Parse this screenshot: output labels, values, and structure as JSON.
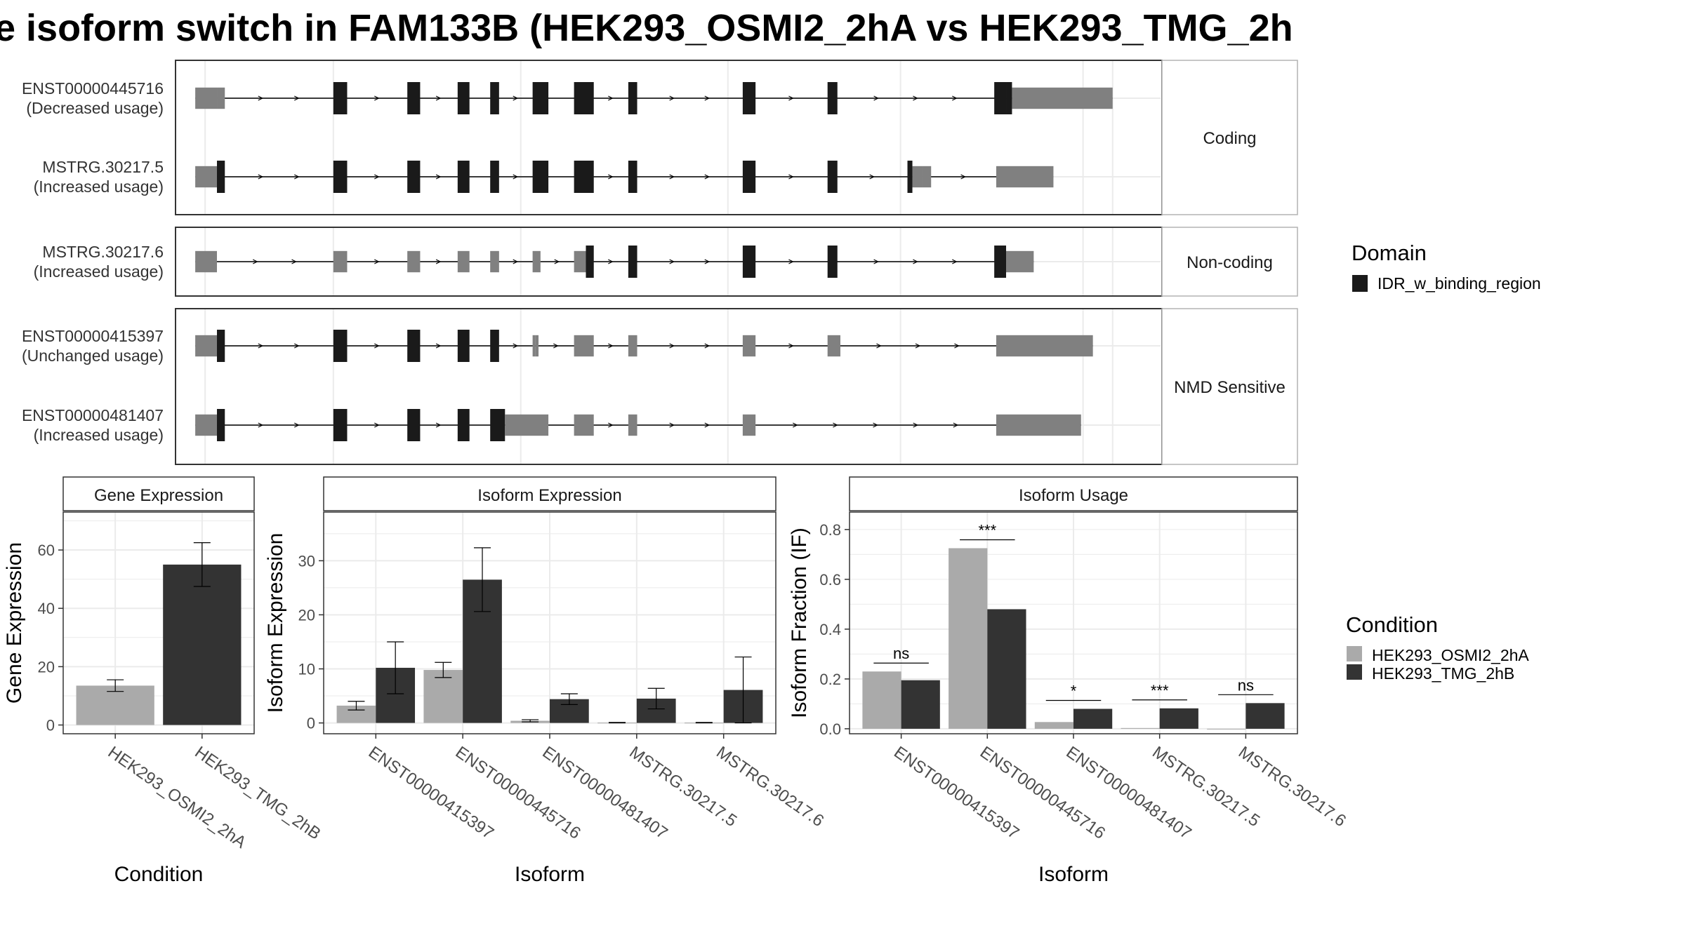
{
  "title": "e isoform switch in FAM133B (HEK293_OSMI2_2hA vs HEK293_TMG_2h",
  "colors": {
    "exon_noncoding": "#808080",
    "exon_domain": "#1a1a1a",
    "condition_a": "#aaaaaa",
    "condition_b": "#333333",
    "grid": "#ebebeb",
    "panel_border": "#333333",
    "strip_border": "#b3b3b3"
  },
  "structure": {
    "groups": [
      {
        "label": "Coding",
        "transcripts": [
          {
            "id": "ENST00000445716",
            "usage": "(Decreased usage)",
            "exons": [
              [
                0.02,
                0.042
              ],
              [
                0.042,
                0.05
              ],
              [
                0.16,
                0.174
              ],
              [
                0.235,
                0.248
              ],
              [
                0.286,
                0.298
              ],
              [
                0.319,
                0.328
              ],
              [
                0.362,
                0.378
              ],
              [
                0.404,
                0.424
              ],
              [
                0.459,
                0.468
              ],
              [
                0.575,
                0.588
              ],
              [
                0.661,
                0.671
              ],
              [
                0.83,
                0.842
              ],
              [
                0.842,
                0.848
              ],
              [
                0.848,
                0.95
              ]
            ],
            "domain": [
              0,
              0,
              1,
              1,
              1,
              1,
              1,
              1,
              1,
              1,
              1,
              1,
              1,
              0
            ]
          },
          {
            "id": "MSTRG.30217.5",
            "usage": "(Increased usage)",
            "exons": [
              [
                0.02,
                0.042
              ],
              [
                0.042,
                0.05
              ],
              [
                0.16,
                0.174
              ],
              [
                0.235,
                0.248
              ],
              [
                0.286,
                0.298
              ],
              [
                0.319,
                0.328
              ],
              [
                0.362,
                0.378
              ],
              [
                0.404,
                0.424
              ],
              [
                0.459,
                0.468
              ],
              [
                0.575,
                0.588
              ],
              [
                0.661,
                0.671
              ],
              [
                0.742,
                0.747
              ],
              [
                0.747,
                0.758
              ],
              [
                0.758,
                0.766
              ],
              [
                0.832,
                0.89
              ]
            ],
            "domain": [
              0,
              1,
              1,
              1,
              1,
              1,
              1,
              1,
              1,
              1,
              1,
              1,
              0,
              0,
              0
            ]
          }
        ]
      },
      {
        "label": "Non-coding",
        "transcripts": [
          {
            "id": "MSTRG.30217.6",
            "usage": "(Increased usage)",
            "exons": [
              [
                0.02,
                0.042
              ],
              [
                0.16,
                0.174
              ],
              [
                0.235,
                0.248
              ],
              [
                0.286,
                0.298
              ],
              [
                0.319,
                0.328
              ],
              [
                0.362,
                0.37
              ],
              [
                0.404,
                0.416
              ],
              [
                0.416,
                0.424
              ],
              [
                0.459,
                0.468
              ],
              [
                0.575,
                0.588
              ],
              [
                0.661,
                0.671
              ],
              [
                0.83,
                0.842
              ],
              [
                0.842,
                0.87
              ]
            ],
            "domain": [
              0,
              0,
              0,
              0,
              0,
              0,
              0,
              1,
              1,
              1,
              1,
              1,
              0
            ]
          }
        ]
      },
      {
        "label": "NMD Sensitive",
        "transcripts": [
          {
            "id": "ENST00000415397",
            "usage": "(Unchanged usage)",
            "exons": [
              [
                0.02,
                0.042
              ],
              [
                0.042,
                0.05
              ],
              [
                0.16,
                0.174
              ],
              [
                0.235,
                0.248
              ],
              [
                0.286,
                0.298
              ],
              [
                0.319,
                0.328
              ],
              [
                0.362,
                0.365
              ],
              [
                0.365,
                0.368
              ],
              [
                0.404,
                0.424
              ],
              [
                0.459,
                0.468
              ],
              [
                0.575,
                0.588
              ],
              [
                0.661,
                0.674
              ],
              [
                0.832,
                0.93
              ]
            ],
            "domain": [
              0,
              1,
              1,
              1,
              1,
              1,
              0,
              0,
              0,
              0,
              0,
              0,
              0
            ]
          },
          {
            "id": "ENST00000481407",
            "usage": "(Increased usage)",
            "exons": [
              [
                0.02,
                0.042
              ],
              [
                0.042,
                0.05
              ],
              [
                0.16,
                0.174
              ],
              [
                0.235,
                0.248
              ],
              [
                0.286,
                0.298
              ],
              [
                0.319,
                0.334
              ],
              [
                0.334,
                0.378
              ],
              [
                0.404,
                0.424
              ],
              [
                0.459,
                0.468
              ],
              [
                0.575,
                0.588
              ],
              [
                0.832,
                0.918
              ]
            ],
            "domain": [
              0,
              1,
              1,
              1,
              1,
              1,
              0,
              0,
              0,
              0,
              0
            ]
          }
        ]
      }
    ]
  },
  "domain_legend": {
    "title": "Domain",
    "items": [
      "IDR_w_binding_region"
    ]
  },
  "condition_legend": {
    "title": "Condition",
    "items": [
      "HEK293_OSMI2_2hA",
      "HEK293_TMG_2hB"
    ]
  },
  "chart_data": [
    {
      "type": "bar",
      "title": "Gene Expression",
      "xlabel": "Condition",
      "ylabel": "Gene Expression",
      "categories": [
        "HEK293_OSMI2_2hA",
        "HEK293_TMG_2hB"
      ],
      "values": [
        13.5,
        55
      ],
      "errors": [
        [
          11.5,
          15.5
        ],
        [
          47.5,
          62.5
        ]
      ],
      "ylim": [
        -3,
        73
      ],
      "yticks": [
        0,
        20,
        40,
        60
      ],
      "grid": true
    },
    {
      "type": "bar",
      "title": "Isoform Expression",
      "xlabel": "Isoform",
      "ylabel": "Isoform Expression",
      "categories": [
        "ENST00000415397",
        "ENST00000445716",
        "ENST00000481407",
        "MSTRG.30217.5",
        "MSTRG.30217.6"
      ],
      "series": [
        {
          "name": "HEK293_OSMI2_2hA",
          "values": [
            3.2,
            9.8,
            0.4,
            0.05,
            0.05
          ],
          "errors": [
            [
              2.4,
              4.0
            ],
            [
              8.4,
              11.2
            ],
            [
              0.2,
              0.6
            ],
            [
              0.0,
              0.1
            ],
            [
              0.0,
              0.1
            ]
          ]
        },
        {
          "name": "HEK293_TMG_2hB",
          "values": [
            10.2,
            26.5,
            4.4,
            4.5,
            6.1
          ],
          "errors": [
            [
              5.4,
              15.0
            ],
            [
              20.6,
              32.4
            ],
            [
              3.4,
              5.4
            ],
            [
              2.6,
              6.4
            ],
            [
              0.0,
              12.2
            ]
          ]
        }
      ],
      "ylim": [
        -2,
        39
      ],
      "yticks": [
        0,
        10,
        20,
        30
      ],
      "grid": true
    },
    {
      "type": "bar",
      "title": "Isoform Usage",
      "xlabel": "Isoform",
      "ylabel": "Isoform Fraction (IF)",
      "categories": [
        "ENST00000415397",
        "ENST00000445716",
        "ENST00000481407",
        "MSTRG.30217.5",
        "MSTRG.30217.6"
      ],
      "series": [
        {
          "name": "HEK293_OSMI2_2hA",
          "values": [
            0.23,
            0.725,
            0.027,
            0.003,
            0.0
          ]
        },
        {
          "name": "HEK293_TMG_2hB",
          "values": [
            0.195,
            0.48,
            0.08,
            0.082,
            0.103
          ]
        }
      ],
      "significance": [
        "ns",
        "***",
        "*",
        "***",
        "ns"
      ],
      "ylim": [
        -0.02,
        0.87
      ],
      "yticks": [
        0.0,
        0.2,
        0.4,
        0.6,
        0.8
      ],
      "grid": true
    }
  ]
}
